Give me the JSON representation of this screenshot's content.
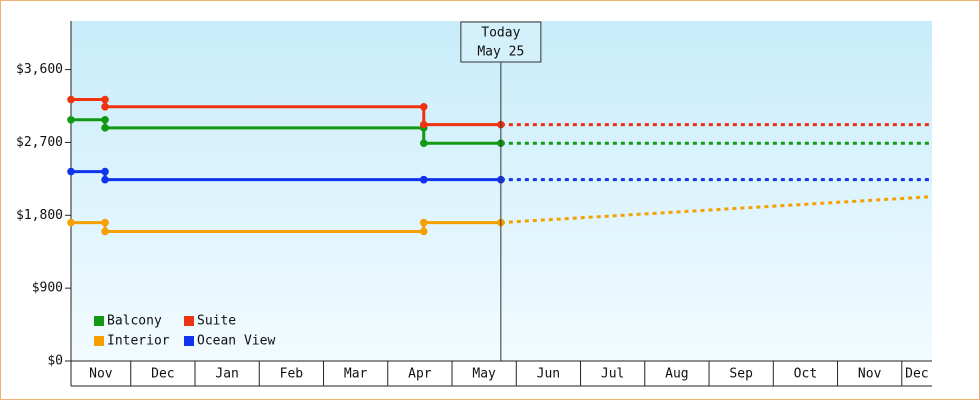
{
  "chart_data": {
    "type": "line",
    "ylim": [
      0,
      4200
    ],
    "yticks": [
      {
        "value": 0,
        "label": "$0"
      },
      {
        "value": 900,
        "label": "$900"
      },
      {
        "value": 1800,
        "label": "$1,800"
      },
      {
        "value": 2700,
        "label": "$2,700"
      },
      {
        "value": 3600,
        "label": "$3,600"
      }
    ],
    "xlim": [
      0.07,
      13.47
    ],
    "xticks": [
      {
        "value": 0,
        "label": "Nov"
      },
      {
        "value": 1,
        "label": "Dec"
      },
      {
        "value": 2,
        "label": "Jan"
      },
      {
        "value": 3,
        "label": "Feb"
      },
      {
        "value": 4,
        "label": "Mar"
      },
      {
        "value": 5,
        "label": "Apr"
      },
      {
        "value": 6,
        "label": "May"
      },
      {
        "value": 7,
        "label": "Jun"
      },
      {
        "value": 8,
        "label": "Jul"
      },
      {
        "value": 9,
        "label": "Aug"
      },
      {
        "value": 10,
        "label": "Sep"
      },
      {
        "value": 11,
        "label": "Oct"
      },
      {
        "value": 12,
        "label": "Nov"
      },
      {
        "value": 13,
        "label": "Dec"
      }
    ],
    "today": {
      "x": 6.76,
      "label": [
        "Today",
        "May 25"
      ]
    },
    "series": [
      {
        "name": "Balcony",
        "color": "#119911",
        "x": [
          0.07,
          0.6,
          0.6,
          5.56,
          5.56,
          6.76
        ],
        "values": [
          2980,
          2980,
          2880,
          2880,
          2690,
          2690
        ],
        "forecast": {
          "x": 13.47,
          "value": 2690
        }
      },
      {
        "name": "Suite",
        "color": "#ee3311",
        "x": [
          0.07,
          0.6,
          0.6,
          5.56,
          5.56,
          6.76
        ],
        "values": [
          3230,
          3230,
          3140,
          3140,
          2920,
          2920
        ],
        "forecast": {
          "x": 13.47,
          "value": 2920
        }
      },
      {
        "name": "Interior",
        "color": "#f5a000",
        "x": [
          0.07,
          0.6,
          0.6,
          5.56,
          5.56,
          6.76
        ],
        "values": [
          1710,
          1710,
          1600,
          1600,
          1710,
          1710
        ],
        "forecast": {
          "x": 13.47,
          "value": 2030
        }
      },
      {
        "name": "Ocean View",
        "color": "#1133ee",
        "x": [
          0.07,
          0.6,
          0.6,
          5.56,
          5.56,
          6.76
        ],
        "values": [
          2340,
          2340,
          2240,
          2240,
          2240,
          2240
        ],
        "forecast": {
          "x": 13.47,
          "value": 2240
        }
      }
    ]
  }
}
